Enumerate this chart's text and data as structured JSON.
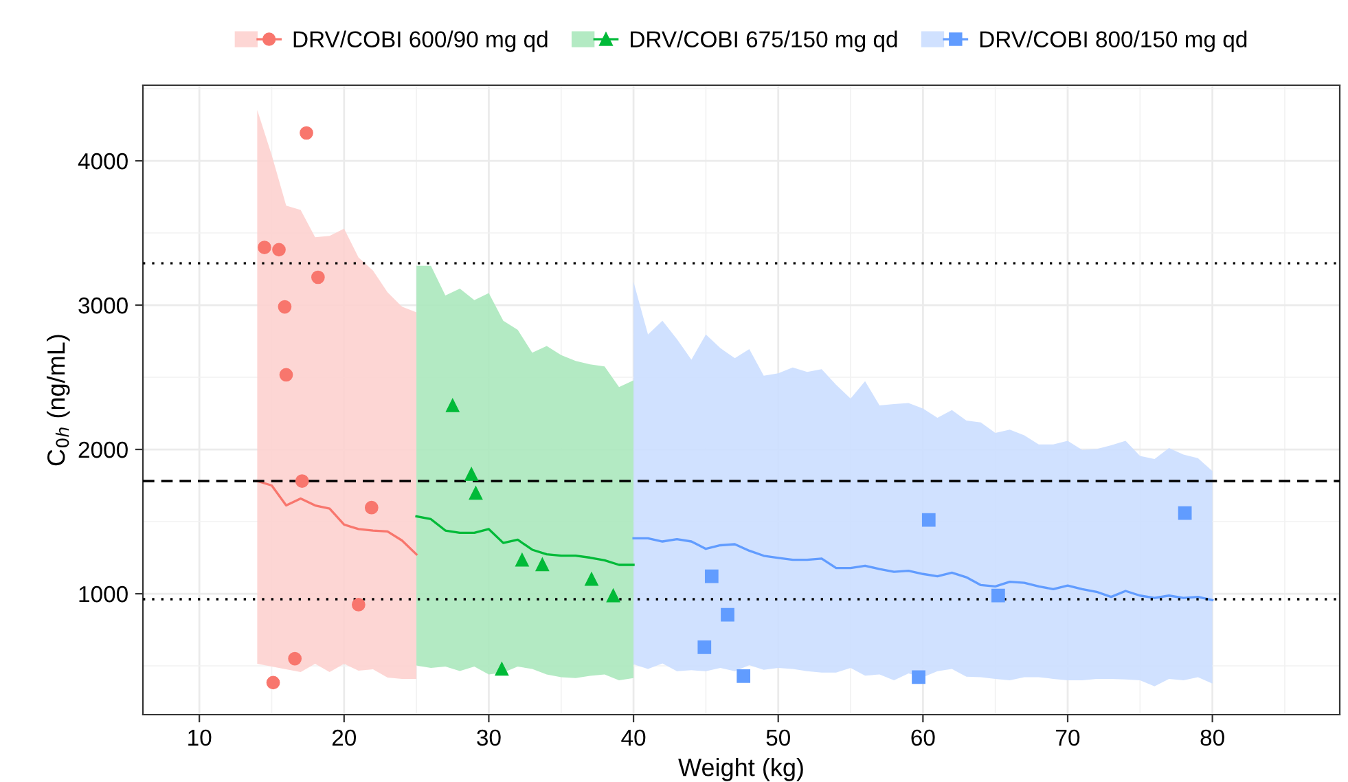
{
  "chart_data": {
    "type": "line",
    "xlabel": "Weight (kg)",
    "ylabel": "C$_{0h}$ (ng/mL)",
    "xlim": [
      6.1,
      88.8
    ],
    "ylim": [
      162,
      4524
    ],
    "xticks": [
      10,
      20,
      30,
      40,
      50,
      60,
      70,
      80
    ],
    "yticks": [
      1000,
      2000,
      3000,
      4000
    ],
    "grid": true,
    "legend": "top",
    "ref_lines": [
      {
        "axis": "y",
        "value": 3290,
        "line_style": "dotted",
        "color": "#000000"
      },
      {
        "axis": "y",
        "value": 1781,
        "line_style": "dashed",
        "color": "#000000"
      },
      {
        "axis": "y",
        "value": 962,
        "line_style": "dotted",
        "color": "#000000"
      }
    ],
    "series": [
      {
        "name": "DRV/COBI 600/90 mg qd",
        "color": "#f8766d",
        "x": [
          14,
          15,
          16,
          17,
          18,
          19,
          20,
          21,
          22,
          23,
          24,
          25
        ],
        "values": [
          1781,
          1750,
          1612,
          1660,
          1612,
          1590,
          1479,
          1448,
          1438,
          1432,
          1369,
          1273
        ],
        "lower": [
          514,
          495,
          476,
          457,
          514,
          457,
          514,
          467,
          476,
          419,
          410,
          410
        ],
        "upper": [
          4352,
          4040,
          3690,
          3660,
          3470,
          3480,
          3530,
          3330,
          3240,
          3090,
          2990,
          2950
        ]
      },
      {
        "type": "scatter",
        "color": "#f8766d",
        "marker": "circle",
        "x": [
          17.4,
          14.5,
          15.5,
          18.2,
          15.9,
          16.0,
          17.1,
          21.9,
          21.0,
          16.6,
          15.1
        ],
        "values": [
          4193,
          3400,
          3384,
          3193,
          2988,
          2517,
          1781,
          1597,
          924,
          550,
          384
        ]
      },
      {
        "name": "DRV/COBI 675/150 mg qd",
        "color": "#00ba38",
        "x": [
          25,
          26,
          27,
          28,
          29,
          30,
          31,
          32,
          33,
          34,
          35,
          36,
          37,
          38,
          39,
          40
        ],
        "values": [
          1536,
          1517,
          1438,
          1422,
          1422,
          1448,
          1352,
          1374,
          1305,
          1273,
          1264,
          1264,
          1250,
          1232,
          1200,
          1200
        ],
        "lower": [
          502,
          486,
          495,
          464,
          495,
          441,
          454,
          495,
          479,
          441,
          422,
          416,
          431,
          441,
          400,
          416
        ],
        "upper": [
          3273,
          3273,
          3067,
          3114,
          3035,
          3083,
          2892,
          2829,
          2670,
          2717,
          2654,
          2613,
          2590,
          2575,
          2432,
          2479
        ]
      },
      {
        "type": "scatter",
        "color": "#00ba38",
        "marker": "triangle",
        "x": [
          27.5,
          28.8,
          29.1,
          32.3,
          33.7,
          37.1,
          38.6,
          30.9
        ],
        "values": [
          2305,
          1829,
          1698,
          1235,
          1203,
          1102,
          988,
          479
        ]
      },
      {
        "name": "DRV/COBI 800/150 mg qd",
        "color": "#619cff",
        "x": [
          40,
          41,
          42,
          43,
          44,
          45,
          46,
          47,
          48,
          49,
          50,
          51,
          52,
          53,
          54,
          55,
          56,
          57,
          58,
          59,
          60,
          61,
          62,
          63,
          64,
          65,
          66,
          67,
          68,
          69,
          70,
          71,
          72,
          73,
          74,
          75,
          76,
          77,
          78,
          79,
          80
        ],
        "values": [
          1384,
          1384,
          1362,
          1378,
          1362,
          1311,
          1336,
          1343,
          1298,
          1263,
          1248,
          1235,
          1235,
          1244,
          1178,
          1178,
          1194,
          1171,
          1152,
          1159,
          1137,
          1121,
          1146,
          1114,
          1060,
          1051,
          1083,
          1076,
          1051,
          1032,
          1057,
          1032,
          1013,
          978,
          1019,
          987,
          971,
          987,
          971,
          978,
          956
        ],
        "lower": [
          511,
          479,
          517,
          463,
          470,
          463,
          486,
          463,
          505,
          473,
          486,
          479,
          463,
          454,
          454,
          486,
          432,
          441,
          400,
          448,
          422,
          463,
          479,
          425,
          422,
          410,
          400,
          422,
          422,
          410,
          400,
          400,
          410,
          410,
          406,
          400,
          359,
          410,
          400,
          422,
          378
        ],
        "upper": [
          3162,
          2797,
          2892,
          2765,
          2622,
          2797,
          2702,
          2632,
          2695,
          2511,
          2527,
          2568,
          2537,
          2556,
          2448,
          2352,
          2473,
          2305,
          2314,
          2321,
          2283,
          2219,
          2273,
          2200,
          2187,
          2114,
          2137,
          2098,
          2035,
          2035,
          2060,
          1997,
          2003,
          2029,
          2060,
          1955,
          1933,
          2010,
          1965,
          1940,
          1850
        ]
      },
      {
        "type": "scatter",
        "color": "#619cff",
        "marker": "square",
        "x": [
          45.4,
          46.5,
          44.9,
          47.6,
          59.7,
          60.4,
          65.2,
          78.1
        ],
        "values": [
          1121,
          854,
          629,
          429,
          422,
          1511,
          988,
          1559
        ]
      }
    ]
  }
}
